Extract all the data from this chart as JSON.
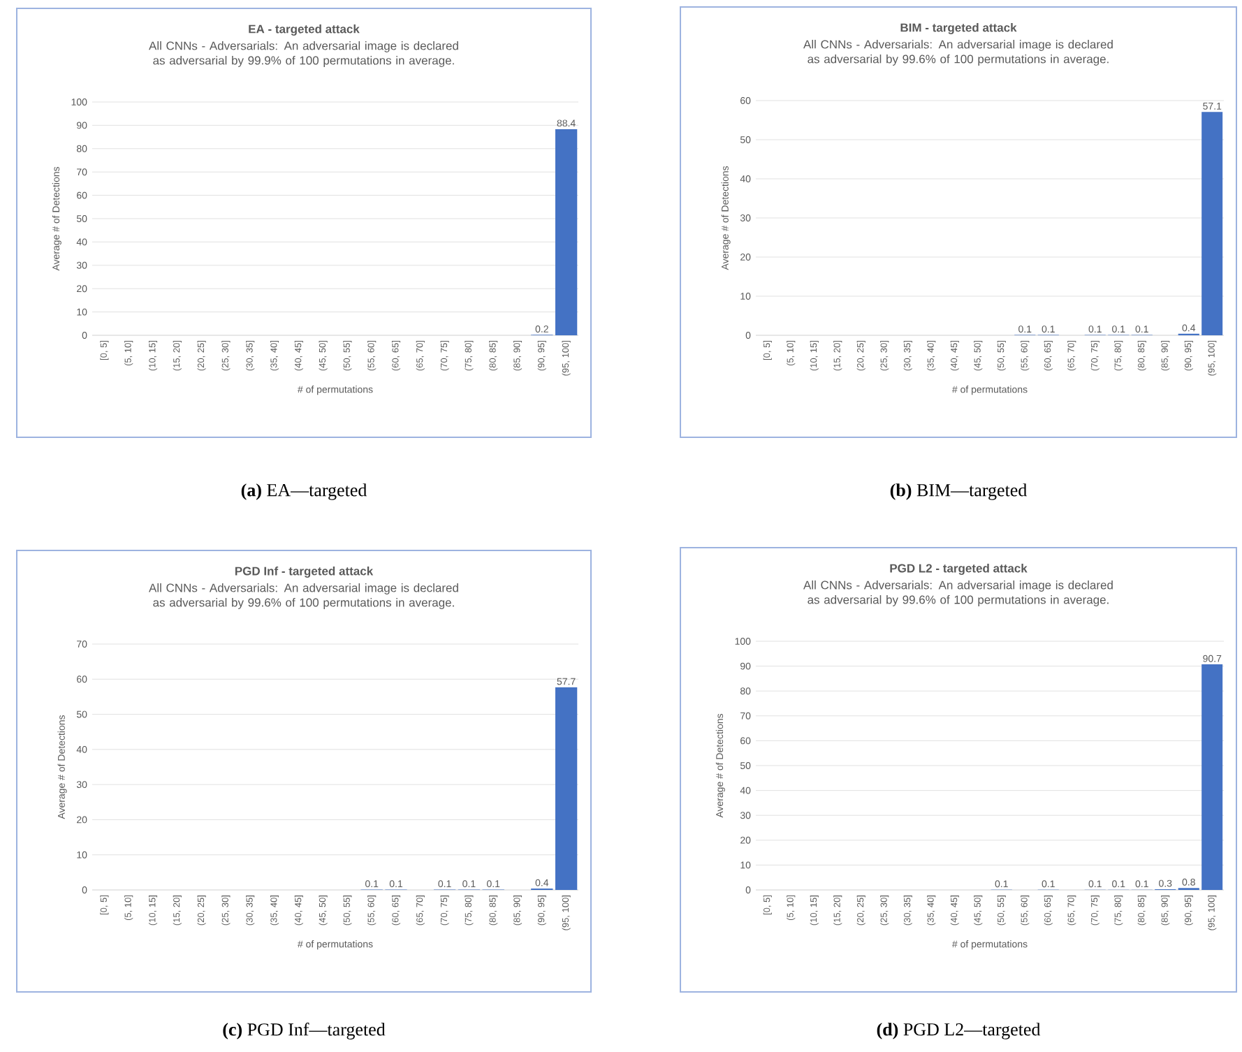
{
  "chart_data": [
    {
      "type": "bar",
      "title": "EA - targeted attack",
      "subtitle": "All CNNs - Adversarials: An adversarial image is declared as adversarial by 99.9% of 100 permutations in average.",
      "xlabel": "# of permutations",
      "ylabel": "Average # of Detections",
      "categories": [
        "[0, 5]",
        "(5, 10]",
        "(10, 15]",
        "(15, 20]",
        "(20, 25]",
        "(25, 30]",
        "(30, 35]",
        "(35, 40]",
        "(40, 45]",
        "(45, 50]",
        "(50, 55]",
        "(55, 60]",
        "(60, 65]",
        "(65, 70]",
        "(70, 75]",
        "(75, 80]",
        "(80, 85]",
        "(85, 90]",
        "(90, 95]",
        "(95, 100]"
      ],
      "values": [
        0,
        0,
        0,
        0,
        0,
        0,
        0,
        0,
        0,
        0,
        0,
        0,
        0,
        0,
        0,
        0,
        0,
        0,
        0.2,
        88.4
      ],
      "value_labels": [
        null,
        null,
        null,
        null,
        null,
        null,
        null,
        null,
        null,
        null,
        null,
        null,
        null,
        null,
        null,
        null,
        null,
        null,
        "0.2",
        "88.4"
      ],
      "color": "#4472c4",
      "ylim": [
        0,
        100
      ],
      "yticks": [
        0,
        10,
        20,
        30,
        40,
        50,
        60,
        70,
        80,
        90,
        100
      ],
      "grid": "y",
      "annotations": [
        "**(a)** EA—targeted"
      ]
    },
    {
      "type": "bar",
      "title": "BIM - targeted attack",
      "subtitle": "All CNNs - Adversarials: An adversarial image is declared as adversarial by 99.6% of 100 permutations in average.",
      "xlabel": "# of permutations",
      "ylabel": "Average # of Detections",
      "categories": [
        "[0, 5]",
        "(5, 10]",
        "(10, 15]",
        "(15, 20]",
        "(20, 25]",
        "(25, 30]",
        "(30, 35]",
        "(35, 40]",
        "(40, 45]",
        "(45, 50]",
        "(50, 55]",
        "(55, 60]",
        "(60, 65]",
        "(65, 70]",
        "(70, 75]",
        "(75, 80]",
        "(80, 85]",
        "(85, 90]",
        "(90, 95]",
        "(95, 100]"
      ],
      "values": [
        0,
        0,
        0,
        0,
        0,
        0,
        0,
        0,
        0,
        0,
        0,
        0.1,
        0.1,
        0,
        0.1,
        0.1,
        0.1,
        0,
        0.4,
        57.1
      ],
      "value_labels": [
        null,
        null,
        null,
        null,
        null,
        null,
        null,
        null,
        null,
        null,
        null,
        "0.1",
        "0.1",
        null,
        "0.1",
        "0.1",
        "0.1",
        null,
        "0.4",
        "57.1"
      ],
      "color": "#4472c4",
      "ylim": [
        0,
        60
      ],
      "yticks": [
        0,
        10,
        20,
        30,
        40,
        50,
        60
      ],
      "grid": "y",
      "annotations": [
        "**(b)** BIM—targeted"
      ]
    },
    {
      "type": "bar",
      "title": "PGD Inf - targeted attack",
      "subtitle": "All CNNs - Adversarials: An adversarial image is declared as adversarial by 99.6% of 100 permutations in average.",
      "xlabel": "# of permutations",
      "ylabel": "Average # of Detections",
      "categories": [
        "[0, 5]",
        "(5, 10]",
        "(10, 15]",
        "(15, 20]",
        "(20, 25]",
        "(25, 30]",
        "(30, 35]",
        "(35, 40]",
        "(40, 45]",
        "(45, 50]",
        "(50, 55]",
        "(55, 60]",
        "(60, 65]",
        "(65, 70]",
        "(70, 75]",
        "(75, 80]",
        "(80, 85]",
        "(85, 90]",
        "(90, 95]",
        "(95, 100]"
      ],
      "values": [
        0,
        0,
        0,
        0,
        0,
        0,
        0,
        0,
        0,
        0,
        0,
        0.1,
        0.1,
        0,
        0.1,
        0.1,
        0.1,
        0,
        0.4,
        57.7
      ],
      "value_labels": [
        null,
        null,
        null,
        null,
        null,
        null,
        null,
        null,
        null,
        null,
        null,
        "0.1",
        "0.1",
        null,
        "0.1",
        "0.1",
        "0.1",
        null,
        "0.4",
        "57.7"
      ],
      "color": "#4472c4",
      "ylim": [
        0,
        70
      ],
      "yticks": [
        0,
        10,
        20,
        30,
        40,
        50,
        60,
        70
      ],
      "grid": "y",
      "annotations": [
        "**(c)** PGD Inf—targeted"
      ]
    },
    {
      "type": "bar",
      "title": "PGD L2 - targeted attack",
      "subtitle": "All CNNs - Adversarials: An adversarial image is declared as adversarial by 99.6% of 100 permutations in average.",
      "xlabel": "# of permutations",
      "ylabel": "Average # of Detections",
      "categories": [
        "[0, 5]",
        "(5, 10]",
        "(10, 15]",
        "(15, 20]",
        "(20, 25]",
        "(25, 30]",
        "(30, 35]",
        "(35, 40]",
        "(40, 45]",
        "(45, 50]",
        "(50, 55]",
        "(55, 60]",
        "(60, 65]",
        "(65, 70]",
        "(70, 75]",
        "(75, 80]",
        "(80, 85]",
        "(85, 90]",
        "(90, 95]",
        "(95, 100]"
      ],
      "values": [
        0,
        0,
        0,
        0,
        0,
        0,
        0,
        0,
        0,
        0,
        0.1,
        0,
        0.1,
        0,
        0.1,
        0.1,
        0.1,
        0.3,
        0.8,
        90.7
      ],
      "value_labels": [
        null,
        null,
        null,
        null,
        null,
        null,
        null,
        null,
        null,
        null,
        "0.1",
        null,
        "0.1",
        null,
        "0.1",
        "0.1",
        "0.1",
        "0.3",
        "0.8",
        "90.7"
      ],
      "color": "#4472c4",
      "ylim": [
        0,
        100
      ],
      "yticks": [
        0,
        10,
        20,
        30,
        40,
        50,
        60,
        70,
        80,
        90,
        100
      ],
      "grid": "y",
      "annotations": [
        "**(d)** PGD L2—targeted"
      ]
    }
  ]
}
